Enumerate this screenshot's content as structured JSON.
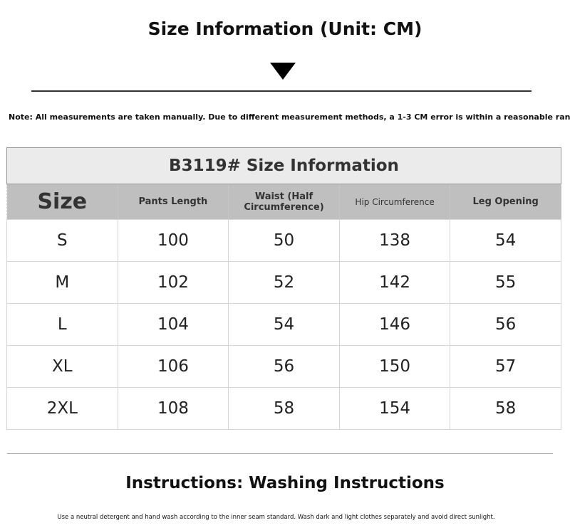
{
  "title": "Size Information (Unit: CM)",
  "note": "Note: All measurements are taken manually. Due to different measurement methods, a 1-3 CM error is within a reasonable range.",
  "table": {
    "caption": "B3119# Size Information",
    "headers": [
      "Size",
      "Pants Length",
      "Waist (Half Circumference)",
      "Hip Circumference",
      "Leg Opening"
    ],
    "rows": [
      [
        "S",
        "100",
        "50",
        "138",
        "54"
      ],
      [
        "M",
        "102",
        "52",
        "142",
        "55"
      ],
      [
        "L",
        "104",
        "54",
        "146",
        "56"
      ],
      [
        "XL",
        "106",
        "56",
        "150",
        "57"
      ],
      [
        "2XL",
        "108",
        "58",
        "154",
        "58"
      ]
    ]
  },
  "washing": {
    "title": "Instructions: Washing Instructions",
    "text": "Use a neutral detergent and hand wash according to the inner seam standard. Wash dark and light clothes separately and avoid direct sunlight."
  }
}
